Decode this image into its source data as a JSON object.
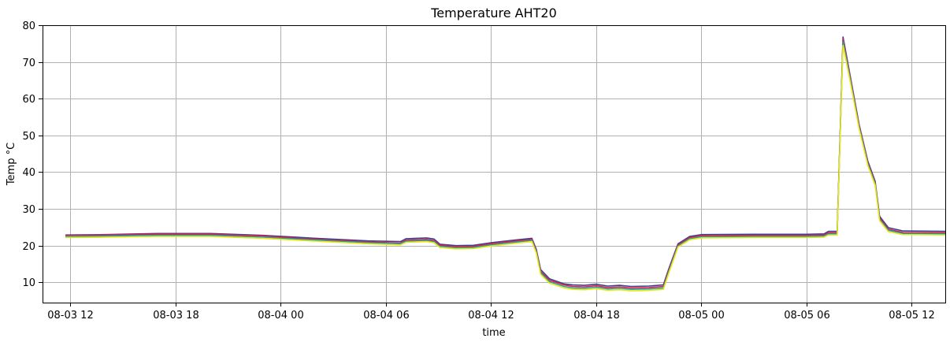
{
  "chart_data": {
    "type": "line",
    "title": "Temperature AHT20",
    "xlabel": "time",
    "ylabel": "Temp °C",
    "xlim": [
      "2024-08-03T10:25",
      "2024-08-05T13:55"
    ],
    "ylim": [
      4.5,
      80
    ],
    "grid": true,
    "x_ticks": [
      {
        "t": "2024-08-03T12:00",
        "label": "08-03 12"
      },
      {
        "t": "2024-08-03T18:00",
        "label": "08-03 18"
      },
      {
        "t": "2024-08-04T00:00",
        "label": "08-04 00"
      },
      {
        "t": "2024-08-04T06:00",
        "label": "08-04 06"
      },
      {
        "t": "2024-08-04T12:00",
        "label": "08-04 12"
      },
      {
        "t": "2024-08-04T18:00",
        "label": "08-04 18"
      },
      {
        "t": "2024-08-05T00:00",
        "label": "08-05 00"
      },
      {
        "t": "2024-08-05T06:00",
        "label": "08-05 06"
      },
      {
        "t": "2024-08-05T12:00",
        "label": "08-05 12"
      }
    ],
    "y_ticks": [
      10,
      20,
      30,
      40,
      50,
      60,
      70,
      80
    ],
    "series": [
      {
        "color": "#3f3f8f",
        "points": [
          [
            "2024-08-03T11:45",
            22.9
          ],
          [
            "2024-08-03T14:00",
            23.0
          ],
          [
            "2024-08-03T17:00",
            23.3
          ],
          [
            "2024-08-03T20:00",
            23.3
          ],
          [
            "2024-08-03T23:00",
            22.8
          ],
          [
            "2024-08-04T02:00",
            22.0
          ],
          [
            "2024-08-04T05:00",
            21.3
          ],
          [
            "2024-08-04T06:50",
            21.1
          ],
          [
            "2024-08-04T07:10",
            21.9
          ],
          [
            "2024-08-04T08:20",
            22.1
          ],
          [
            "2024-08-04T08:45",
            21.8
          ],
          [
            "2024-08-04T09:05",
            20.4
          ],
          [
            "2024-08-04T10:00",
            20.0
          ],
          [
            "2024-08-04T11:00",
            20.1
          ],
          [
            "2024-08-04T12:00",
            20.8
          ],
          [
            "2024-08-04T13:30",
            21.6
          ],
          [
            "2024-08-04T14:20",
            22.0
          ],
          [
            "2024-08-04T14:35",
            19.0
          ],
          [
            "2024-08-04T14:50",
            13.5
          ],
          [
            "2024-08-04T15:20",
            11.0
          ],
          [
            "2024-08-04T16:10",
            9.6
          ],
          [
            "2024-08-04T16:40",
            9.3
          ],
          [
            "2024-08-04T17:20",
            9.2
          ],
          [
            "2024-08-04T18:00",
            9.5
          ],
          [
            "2024-08-04T18:40",
            9.0
          ],
          [
            "2024-08-04T19:20",
            9.2
          ],
          [
            "2024-08-04T20:00",
            8.9
          ],
          [
            "2024-08-04T21:00",
            9.0
          ],
          [
            "2024-08-04T21:50",
            9.3
          ],
          [
            "2024-08-04T22:10",
            14.0
          ],
          [
            "2024-08-04T22:40",
            20.5
          ],
          [
            "2024-08-04T23:20",
            22.5
          ],
          [
            "2024-08-05T00:00",
            23.0
          ],
          [
            "2024-08-05T03:00",
            23.1
          ],
          [
            "2024-08-05T06:00",
            23.1
          ],
          [
            "2024-08-05T07:00",
            23.2
          ],
          [
            "2024-08-05T07:15",
            23.9
          ],
          [
            "2024-08-05T07:45",
            23.9
          ],
          [
            "2024-08-05T08:05",
            76.8
          ],
          [
            "2024-08-05T08:30",
            66.0
          ],
          [
            "2024-08-05T09:00",
            53.0
          ],
          [
            "2024-08-05T09:30",
            43.0
          ],
          [
            "2024-08-05T09:55",
            37.5
          ],
          [
            "2024-08-05T10:10",
            28.0
          ],
          [
            "2024-08-05T10:40",
            24.9
          ],
          [
            "2024-08-05T11:30",
            24.0
          ],
          [
            "2024-08-05T13:55",
            23.9
          ]
        ]
      },
      {
        "color": "#e0204a",
        "points": [
          [
            "2024-08-03T11:45",
            22.8
          ],
          [
            "2024-08-03T14:00",
            22.9
          ],
          [
            "2024-08-03T17:00",
            23.1
          ],
          [
            "2024-08-03T20:00",
            23.1
          ],
          [
            "2024-08-03T23:00",
            22.6
          ],
          [
            "2024-08-04T02:00",
            21.7
          ],
          [
            "2024-08-04T05:00",
            21.0
          ],
          [
            "2024-08-04T06:50",
            20.7
          ],
          [
            "2024-08-04T07:10",
            21.5
          ],
          [
            "2024-08-04T08:20",
            21.7
          ],
          [
            "2024-08-04T08:45",
            21.4
          ],
          [
            "2024-08-04T09:05",
            20.1
          ],
          [
            "2024-08-04T10:00",
            19.7
          ],
          [
            "2024-08-04T11:00",
            19.8
          ],
          [
            "2024-08-04T12:00",
            20.5
          ],
          [
            "2024-08-04T13:30",
            21.3
          ],
          [
            "2024-08-04T14:20",
            21.7
          ],
          [
            "2024-08-04T14:35",
            18.6
          ],
          [
            "2024-08-04T14:50",
            13.0
          ],
          [
            "2024-08-04T15:20",
            10.6
          ],
          [
            "2024-08-04T16:10",
            9.3
          ],
          [
            "2024-08-04T16:40",
            8.9
          ],
          [
            "2024-08-04T17:20",
            8.8
          ],
          [
            "2024-08-04T18:00",
            9.1
          ],
          [
            "2024-08-04T18:40",
            8.6
          ],
          [
            "2024-08-04T19:20",
            8.8
          ],
          [
            "2024-08-04T20:00",
            8.5
          ],
          [
            "2024-08-04T21:00",
            8.6
          ],
          [
            "2024-08-04T21:50",
            8.9
          ],
          [
            "2024-08-04T22:10",
            13.6
          ],
          [
            "2024-08-04T22:40",
            20.2
          ],
          [
            "2024-08-04T23:20",
            22.2
          ],
          [
            "2024-08-05T00:00",
            22.7
          ],
          [
            "2024-08-05T03:00",
            22.8
          ],
          [
            "2024-08-05T06:00",
            22.8
          ],
          [
            "2024-08-05T07:00",
            22.9
          ],
          [
            "2024-08-05T07:15",
            23.5
          ],
          [
            "2024-08-05T07:45",
            23.5
          ],
          [
            "2024-08-05T08:05",
            76.2
          ],
          [
            "2024-08-05T08:30",
            65.5
          ],
          [
            "2024-08-05T09:00",
            52.6
          ],
          [
            "2024-08-05T09:30",
            42.6
          ],
          [
            "2024-08-05T09:55",
            37.1
          ],
          [
            "2024-08-05T10:10",
            27.6
          ],
          [
            "2024-08-05T10:40",
            24.5
          ],
          [
            "2024-08-05T11:30",
            23.6
          ],
          [
            "2024-08-05T13:55",
            23.5
          ]
        ]
      },
      {
        "color": "#2aa198",
        "points": [
          [
            "2024-08-03T11:45",
            22.5
          ],
          [
            "2024-08-03T14:00",
            22.6
          ],
          [
            "2024-08-03T17:00",
            22.8
          ],
          [
            "2024-08-03T20:00",
            22.8
          ],
          [
            "2024-08-03T23:00",
            22.3
          ],
          [
            "2024-08-04T02:00",
            21.5
          ],
          [
            "2024-08-04T05:00",
            20.8
          ],
          [
            "2024-08-04T06:50",
            20.5
          ],
          [
            "2024-08-04T07:10",
            21.2
          ],
          [
            "2024-08-04T08:20",
            21.4
          ],
          [
            "2024-08-04T08:45",
            21.1
          ],
          [
            "2024-08-04T09:05",
            19.8
          ],
          [
            "2024-08-04T10:00",
            19.4
          ],
          [
            "2024-08-04T11:00",
            19.5
          ],
          [
            "2024-08-04T12:00",
            20.2
          ],
          [
            "2024-08-04T13:30",
            21.0
          ],
          [
            "2024-08-04T14:20",
            21.4
          ],
          [
            "2024-08-04T14:35",
            18.3
          ],
          [
            "2024-08-04T14:50",
            12.6
          ],
          [
            "2024-08-04T15:20",
            10.2
          ],
          [
            "2024-08-04T16:10",
            8.9
          ],
          [
            "2024-08-04T16:40",
            8.5
          ],
          [
            "2024-08-04T17:20",
            8.4
          ],
          [
            "2024-08-04T18:00",
            8.7
          ],
          [
            "2024-08-04T18:40",
            8.2
          ],
          [
            "2024-08-04T19:20",
            8.4
          ],
          [
            "2024-08-04T20:00",
            8.1
          ],
          [
            "2024-08-04T21:00",
            8.2
          ],
          [
            "2024-08-04T21:50",
            8.5
          ],
          [
            "2024-08-04T22:10",
            13.2
          ],
          [
            "2024-08-04T22:40",
            19.9
          ],
          [
            "2024-08-04T23:20",
            21.9
          ],
          [
            "2024-08-05T00:00",
            22.4
          ],
          [
            "2024-08-05T03:00",
            22.5
          ],
          [
            "2024-08-05T06:00",
            22.5
          ],
          [
            "2024-08-05T07:00",
            22.6
          ],
          [
            "2024-08-05T07:15",
            23.2
          ],
          [
            "2024-08-05T07:45",
            23.2
          ],
          [
            "2024-08-05T08:05",
            75.5
          ],
          [
            "2024-08-05T08:30",
            65.0
          ],
          [
            "2024-08-05T09:00",
            52.2
          ],
          [
            "2024-08-05T09:30",
            42.2
          ],
          [
            "2024-08-05T09:55",
            36.8
          ],
          [
            "2024-08-05T10:10",
            27.2
          ],
          [
            "2024-08-05T10:40",
            24.2
          ],
          [
            "2024-08-05T11:30",
            23.3
          ],
          [
            "2024-08-05T13:55",
            23.2
          ]
        ]
      },
      {
        "color": "#e8e81a",
        "points": [
          [
            "2024-08-03T11:45",
            22.2
          ],
          [
            "2024-08-03T14:00",
            22.3
          ],
          [
            "2024-08-03T17:00",
            22.5
          ],
          [
            "2024-08-03T20:00",
            22.5
          ],
          [
            "2024-08-03T23:00",
            22.0
          ],
          [
            "2024-08-04T02:00",
            21.2
          ],
          [
            "2024-08-04T05:00",
            20.5
          ],
          [
            "2024-08-04T06:50",
            20.2
          ],
          [
            "2024-08-04T07:10",
            20.9
          ],
          [
            "2024-08-04T08:20",
            21.1
          ],
          [
            "2024-08-04T08:45",
            20.8
          ],
          [
            "2024-08-04T09:05",
            19.5
          ],
          [
            "2024-08-04T10:00",
            19.1
          ],
          [
            "2024-08-04T11:00",
            19.2
          ],
          [
            "2024-08-04T12:00",
            19.9
          ],
          [
            "2024-08-04T13:30",
            20.7
          ],
          [
            "2024-08-04T14:20",
            21.1
          ],
          [
            "2024-08-04T14:35",
            18.0
          ],
          [
            "2024-08-04T14:50",
            12.2
          ],
          [
            "2024-08-04T15:20",
            9.8
          ],
          [
            "2024-08-04T16:10",
            8.5
          ],
          [
            "2024-08-04T16:40",
            8.1
          ],
          [
            "2024-08-04T17:20",
            8.0
          ],
          [
            "2024-08-04T18:00",
            8.3
          ],
          [
            "2024-08-04T18:40",
            7.8
          ],
          [
            "2024-08-04T19:20",
            8.0
          ],
          [
            "2024-08-04T20:00",
            7.7
          ],
          [
            "2024-08-04T21:00",
            7.8
          ],
          [
            "2024-08-04T21:50",
            8.1
          ],
          [
            "2024-08-04T22:10",
            12.8
          ],
          [
            "2024-08-04T22:40",
            19.6
          ],
          [
            "2024-08-04T23:20",
            21.6
          ],
          [
            "2024-08-05T00:00",
            22.1
          ],
          [
            "2024-08-05T03:00",
            22.2
          ],
          [
            "2024-08-05T06:00",
            22.2
          ],
          [
            "2024-08-05T07:00",
            22.3
          ],
          [
            "2024-08-05T07:15",
            22.9
          ],
          [
            "2024-08-05T07:45",
            22.9
          ],
          [
            "2024-08-05T08:05",
            74.5
          ],
          [
            "2024-08-05T08:30",
            64.4
          ],
          [
            "2024-08-05T09:00",
            51.8
          ],
          [
            "2024-08-05T09:30",
            41.8
          ],
          [
            "2024-08-05T09:55",
            36.4
          ],
          [
            "2024-08-05T10:10",
            26.8
          ],
          [
            "2024-08-05T10:40",
            23.8
          ],
          [
            "2024-08-05T11:30",
            23.0
          ],
          [
            "2024-08-05T13:55",
            22.9
          ]
        ]
      }
    ]
  }
}
